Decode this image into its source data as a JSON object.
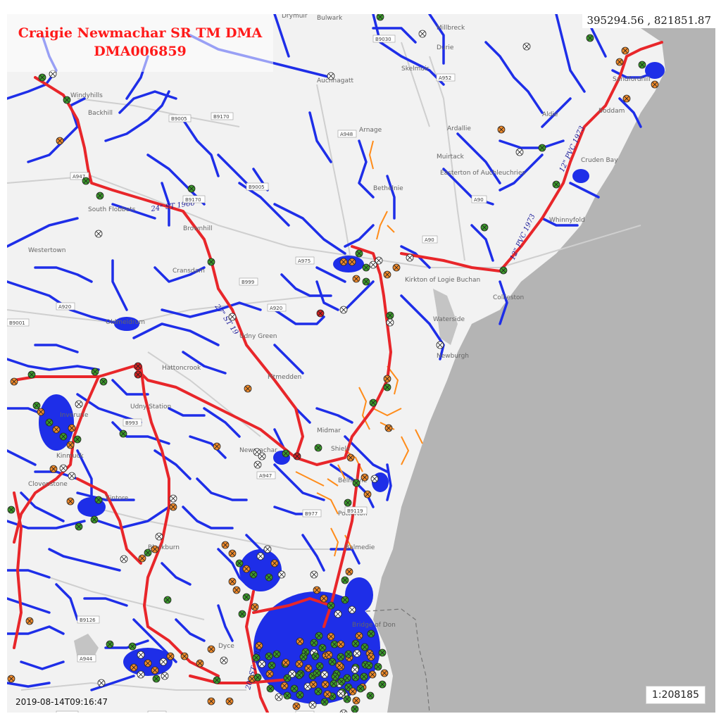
{
  "title": {
    "line1": "Craigie Newmachar SR TM DMA",
    "line2": "DMA006859"
  },
  "coordinates": "395294.56 , 821851.87",
  "scale": "1:208185",
  "timestamp": "2019-08-14T09:16:47",
  "colors": {
    "land": "#f2f2f2",
    "sea": "#b4b4b4",
    "trunk_main": "#e8262a",
    "distribution_main": "#1e2ee8",
    "service_pipe": "#ff8c1a",
    "valve_green": "#3a9a2a",
    "valve_orange": "#f08a2a",
    "valve_white": "#ffffff",
    "valve_red": "#d42020",
    "road_shield": "#ffffff"
  },
  "place_labels": [
    "Drymuir",
    "Bulwark",
    "Millbreck",
    "Durie",
    "Skelmuir",
    "Auchnagatt",
    "Windyhills",
    "Backhill",
    "Aldie",
    "Ardallie",
    "Arnage",
    "Muirtack",
    "Easterton of Auchleuchries",
    "Bethelnie",
    "South Flobbets",
    "Westertown",
    "Brownhill",
    "Cransdam",
    "Kirkton of Logie Buchan",
    "Collieston",
    "Waterside",
    "Newburgh",
    "Oldmeldrum",
    "Hattoncrook",
    "Udny Green",
    "Pitmedden",
    "Inverurie",
    "Midmar",
    "Shiels",
    "Belhelvie",
    "Kintore",
    "Blackburn",
    "Newmachar",
    "Potterton",
    "Balmedie",
    "Whinnyfold",
    "Sandfordhill",
    "Cruden Bay",
    "Boddam",
    "Kinmuck",
    "Udny Station",
    "Clovenstone",
    "Dyce",
    "Bridge of Don"
  ],
  "road_labels": [
    "B9030",
    "A952",
    "B9005",
    "B9170",
    "A948",
    "A947",
    "B9170",
    "B9005",
    "A90",
    "A90",
    "B999",
    "A920",
    "B9001",
    "A920",
    "A975",
    "B993",
    "A947",
    "B977",
    "B9119",
    "B979",
    "B9126",
    "A944",
    "B9000",
    "A975"
  ],
  "pipe_labels": [
    "24\" ST 1966",
    "27\" ST 19",
    "12\" PVC 1973",
    "12\" PVC 1973",
    "20\" ST 1982"
  ],
  "valve_types": [
    "green",
    "orange",
    "white",
    "red"
  ]
}
